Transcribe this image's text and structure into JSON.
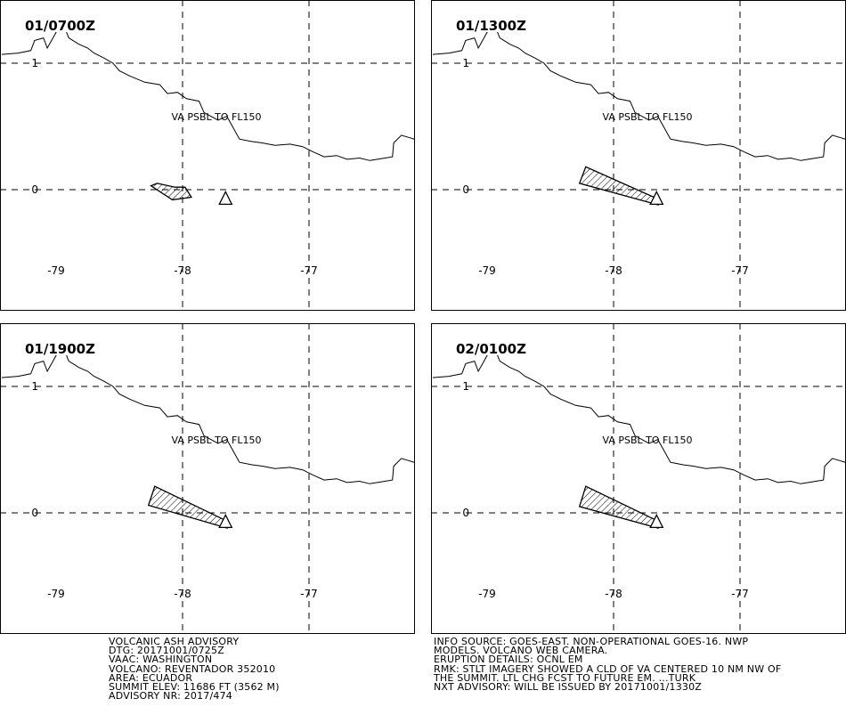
{
  "panels": [
    {
      "time": "01/0700Z",
      "label": "VA PSBL TO FL150",
      "ash": [
        [
          -78.2,
          0.05
        ],
        [
          -78.25,
          0.03
        ],
        [
          -78.08,
          -0.08
        ],
        [
          -77.93,
          -0.06
        ],
        [
          -77.98,
          0.02
        ],
        [
          -78.06,
          0.02
        ]
      ]
    },
    {
      "time": "01/1300Z",
      "label": "VA PSBL TO FL150",
      "ash": [
        [
          -78.22,
          0.18
        ],
        [
          -78.27,
          0.05
        ],
        [
          -77.65,
          -0.12
        ],
        [
          -77.68,
          -0.06
        ]
      ]
    },
    {
      "time": "01/1900Z",
      "label": "VA PSBL TO FL150",
      "ash": [
        [
          -78.22,
          0.21
        ],
        [
          -78.27,
          0.06
        ],
        [
          -77.65,
          -0.12
        ],
        [
          -77.68,
          -0.05
        ]
      ]
    },
    {
      "time": "02/0100Z",
      "label": "VA PSBL TO FL150",
      "ash": [
        [
          -78.22,
          0.21
        ],
        [
          -78.27,
          0.05
        ],
        [
          -77.65,
          -0.12
        ],
        [
          -77.68,
          -0.05
        ]
      ]
    }
  ],
  "map": {
    "lon_ticks": [
      "-79",
      "-78",
      "-77"
    ],
    "lat_ticks": [
      "1",
      "0"
    ],
    "volcano": {
      "lon": -77.66,
      "lat": -0.08
    },
    "coast": [
      [
        -79.43,
        1.07
      ],
      [
        -79.3,
        1.08
      ],
      [
        -79.2,
        1.1
      ],
      [
        -79.17,
        1.18
      ],
      [
        -79.1,
        1.2
      ],
      [
        -79.07,
        1.12
      ],
      [
        -79.03,
        1.19
      ],
      [
        -78.98,
        1.28
      ],
      [
        -78.92,
        1.25
      ],
      [
        -78.9,
        1.2
      ],
      [
        -78.82,
        1.15
      ],
      [
        -78.75,
        1.12
      ],
      [
        -78.7,
        1.08
      ],
      [
        -78.62,
        1.04
      ],
      [
        -78.55,
        1.0
      ],
      [
        -78.5,
        0.94
      ],
      [
        -78.42,
        0.9
      ],
      [
        -78.3,
        0.85
      ],
      [
        -78.18,
        0.83
      ],
      [
        -78.12,
        0.76
      ],
      [
        -78.04,
        0.77
      ],
      [
        -77.97,
        0.72
      ],
      [
        -77.87,
        0.7
      ],
      [
        -77.83,
        0.61
      ],
      [
        -77.72,
        0.55
      ],
      [
        -77.65,
        0.58
      ],
      [
        -77.6,
        0.49
      ],
      [
        -77.55,
        0.4
      ],
      [
        -77.45,
        0.38
      ],
      [
        -77.37,
        0.37
      ],
      [
        -77.27,
        0.35
      ],
      [
        -77.15,
        0.36
      ],
      [
        -77.05,
        0.34
      ],
      [
        -76.97,
        0.3
      ],
      [
        -76.88,
        0.26
      ],
      [
        -76.78,
        0.27
      ],
      [
        -76.7,
        0.24
      ],
      [
        -76.6,
        0.25
      ],
      [
        -76.52,
        0.23
      ],
      [
        -76.4,
        0.25
      ],
      [
        -76.34,
        0.26
      ],
      [
        -76.33,
        0.37
      ],
      [
        -76.27,
        0.43
      ],
      [
        -76.2,
        0.41
      ],
      [
        -76.14,
        0.39
      ]
    ]
  },
  "advisory_left": [
    "VOLCANIC ASH ADVISORY",
    "DTG: 20171001/0725Z",
    "VAAC: WASHINGTON",
    "VOLCANO: REVENTADOR 352010",
    "AREA: ECUADOR",
    "SUMMIT ELEV: 11686 FT (3562 M)",
    "ADVISORY NR: 2017/474"
  ],
  "advisory_right": [
    "INFO SOURCE: GOES-EAST. NON-OPERATIONAL GOES-16. NWP",
    "MODELS. VOLCANO WEB CAMERA.",
    "ERUPTION DETAILS: OCNL EM",
    "RMK: STLT IMAGERY SHOWED A CLD OF VA CENTERED 10 NM NW OF",
    "THE SUMMIT. LTL CHG FCST TO FUTURE EM. ...TURK",
    "NXT ADVISORY: WILL BE ISSUED BY 20171001/1330Z"
  ]
}
